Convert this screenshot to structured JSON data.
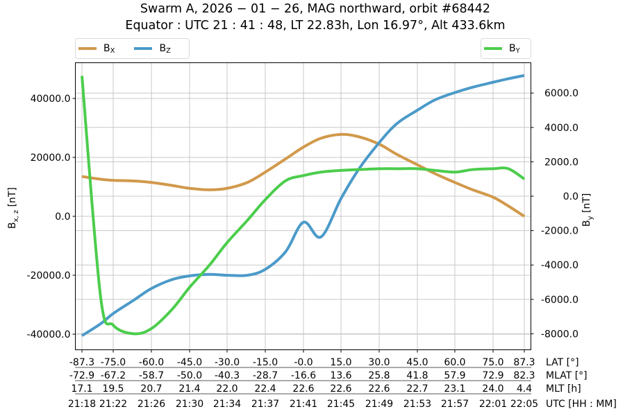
{
  "title": {
    "line1": "Swarm A,  2026 − 01 − 26,  MAG northward,  orbit #68442",
    "line2": "Equator :  UTC 21 : 41 : 48,  LT 22.83h,  Lon 16.97°,  Alt 433.6km"
  },
  "legend": {
    "left": [
      {
        "label": "B",
        "sub": "X",
        "color": "#d1994b"
      },
      {
        "label": "B",
        "sub": "Z",
        "color": "#4b9ac9"
      }
    ],
    "right": [
      {
        "label": "B",
        "sub": "Y",
        "color": "#4ccd4c"
      }
    ]
  },
  "axes": {
    "left_label": "B",
    "left_label_sub": "x, z",
    "left_label_unit": " [nT]",
    "right_label": "B",
    "right_label_sub": "y",
    "right_label_unit": " [nT]",
    "left_ticks": [
      "40000.0",
      "20000.0",
      "0.0",
      "-20000.0",
      "-40000.0"
    ],
    "right_ticks": [
      "6000.0",
      "4000.0",
      "2000.0",
      "0.0",
      "-2000.0",
      "-4000.0",
      "-6000.0",
      "-8000.0"
    ]
  },
  "x_rows": [
    {
      "label": "LAT [°]",
      "values": [
        "-87.3",
        "-75.0",
        "-60.0",
        "-45.0",
        "-30.0",
        "-15.0",
        "-0.0",
        "15.0",
        "30.0",
        "45.0",
        "60.0",
        "75.0",
        "87.3"
      ]
    },
    {
      "label": "MLAT [°]",
      "values": [
        "-72.9",
        "-67.2",
        "-58.7",
        "-50.0",
        "-40.3",
        "-28.7",
        "-16.6",
        "13.6",
        "25.8",
        "41.8",
        "57.9",
        "72.9",
        "82.3"
      ]
    },
    {
      "label": "MLT [h]",
      "values": [
        "17.1",
        "19.5",
        "20.7",
        "21.4",
        "22.0",
        "22.4",
        "22.6",
        "22.6",
        "22.6",
        "22.7",
        "23.1",
        "24.0",
        "4.4"
      ]
    },
    {
      "label": "UTC [HH : MM]",
      "values": [
        "21:18",
        "21:22",
        "21:26",
        "21:30",
        "21:34",
        "21:37",
        "21:41",
        "21:45",
        "21:49",
        "21:53",
        "21:57",
        "22:01",
        "22:05"
      ]
    }
  ],
  "chart_data": {
    "type": "line",
    "title": "Swarm A, 2026-01-26, MAG northward, orbit #68442 — Equator: UTC 21:41:48, LT 22.83h, Lon 16.97°, Alt 433.6km",
    "xlabel": "LAT [°] / MLAT [°] / MLT [h] / UTC [HH:MM]",
    "x": [
      -87.3,
      -80,
      -75.0,
      -67,
      -60.0,
      -52,
      -45.0,
      -37,
      -30.0,
      -22,
      -15.0,
      -7,
      -0.0,
      7,
      15.0,
      22,
      30.0,
      37,
      45.0,
      52,
      60.0,
      67,
      75.0,
      81,
      87.3
    ],
    "ylabel_left": "B_x,z [nT]",
    "ylabel_right": "B_y [nT]",
    "ylim_left": [
      -45000,
      52000
    ],
    "ylim_right": [
      -9000,
      8700
    ],
    "grid": true,
    "legend_position": "top (Bx, Bz left; By right)",
    "series": [
      {
        "name": "B_X",
        "axis": "left",
        "color": "#d1994b",
        "values": [
          13500,
          12600,
          12200,
          12000,
          11500,
          10500,
          9500,
          9000,
          9500,
          11500,
          15000,
          19500,
          23500,
          26500,
          27800,
          27000,
          24500,
          21000,
          17500,
          14500,
          11500,
          9000,
          6500,
          3500,
          0
        ]
      },
      {
        "name": "B_Z",
        "axis": "left",
        "color": "#4b9ac9",
        "values": [
          -40500,
          -36500,
          -33000,
          -28500,
          -24500,
          -21500,
          -20200,
          -19700,
          -20000,
          -20000,
          -18000,
          -12000,
          -2000,
          -7000,
          6000,
          16000,
          25000,
          31500,
          36000,
          39500,
          42000,
          43800,
          45500,
          46700,
          47800
        ]
      },
      {
        "name": "B_Y",
        "axis": "right",
        "color": "#4ccd4c",
        "values": [
          7000,
          -5800,
          -7500,
          -8000,
          -7700,
          -6600,
          -5300,
          -4000,
          -2700,
          -1400,
          -200,
          900,
          1200,
          1400,
          1500,
          1550,
          1600,
          1600,
          1600,
          1500,
          1400,
          1550,
          1600,
          1600,
          1000
        ]
      }
    ]
  }
}
